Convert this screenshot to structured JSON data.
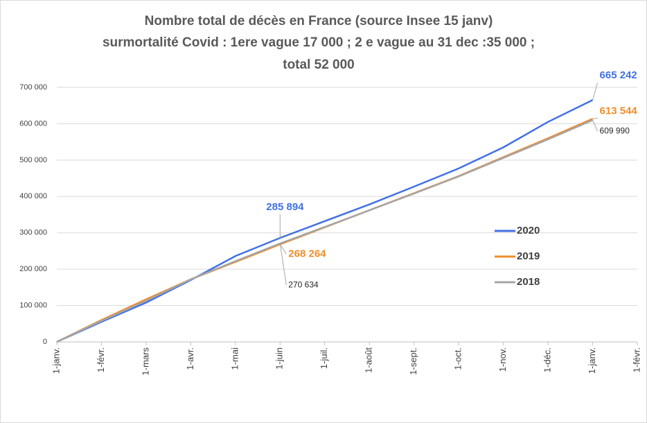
{
  "chart_data": {
    "type": "line",
    "title": [
      "Nombre total de décès  en France  (source Insee 15 janv)",
      "surmortalité Covid : 1ere vague 17 000 ;  2 e vague au 31 dec :35 000 ;",
      "total 52 000"
    ],
    "categories": [
      "1-janv.",
      "1-févr.",
      "1-mars",
      "1-avr.",
      "1-mai",
      "1-juin",
      "1-juil.",
      "1-août",
      "1-sept.",
      "1-oct.",
      "1-nov.",
      "1-déc.",
      "1-janv.",
      "1-févr."
    ],
    "series": [
      {
        "name": "2020",
        "color": "#4170e6",
        "values": [
          0,
          55000,
          108000,
          170000,
          236000,
          285894,
          332000,
          378000,
          427000,
          477000,
          535000,
          605000,
          665242,
          null
        ],
        "value_labels": [
          null,
          null,
          null,
          null,
          null,
          "285 894",
          null,
          null,
          null,
          null,
          null,
          null,
          "665 242",
          null
        ]
      },
      {
        "name": "2019",
        "color": "#f28c28",
        "values": [
          0,
          60000,
          117000,
          172000,
          220000,
          268264,
          315000,
          362000,
          409000,
          456000,
          508000,
          560000,
          613544,
          null
        ],
        "value_labels": [
          null,
          null,
          null,
          null,
          null,
          "268 264",
          null,
          null,
          null,
          null,
          null,
          null,
          "613 544",
          null
        ]
      },
      {
        "name": "2018",
        "color": "#a5a5a5",
        "values": [
          0,
          58000,
          113000,
          172000,
          222000,
          270634,
          316000,
          362000,
          408000,
          455000,
          506000,
          557000,
          609990,
          null
        ],
        "value_labels": [
          null,
          null,
          null,
          null,
          null,
          "270 634",
          null,
          null,
          null,
          null,
          null,
          null,
          "609 990",
          null
        ]
      }
    ],
    "ylim": [
      0,
      700000
    ],
    "yticks": [
      0,
      {
        "value": 100000,
        "label": "100 000"
      },
      {
        "value": 200000,
        "label": "200 000"
      },
      {
        "value": 300000,
        "label": "300 000"
      },
      {
        "value": 400000,
        "label": "400 000"
      },
      {
        "value": 500000,
        "label": "500 000"
      },
      {
        "value": 600000,
        "label": "600 000"
      },
      {
        "value": 700000,
        "label": "700 000"
      }
    ],
    "grid": true
  }
}
